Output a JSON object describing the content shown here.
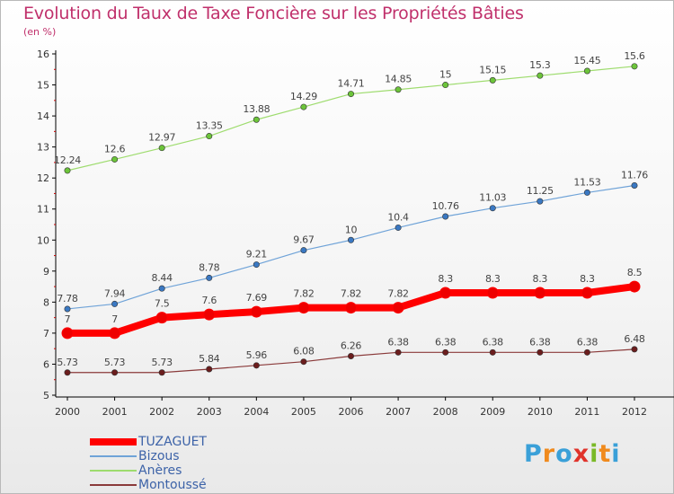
{
  "title": "Evolution du Taux de Taxe Foncière sur les Propriétés Bâties",
  "unit": "(en %)",
  "logo": {
    "letters": [
      "P",
      "r",
      "o",
      "x",
      "i",
      "t",
      "i"
    ],
    "colors": [
      "#3aa0d8",
      "#f08a1d",
      "#3aa0d8",
      "#e0332b",
      "#7ab927",
      "#f08a1d",
      "#3aa0d8"
    ]
  },
  "chart_data": {
    "type": "line",
    "x": [
      "2000",
      "2001",
      "2002",
      "2003",
      "2004",
      "2005",
      "2006",
      "2007",
      "2008",
      "2009",
      "2010",
      "2011",
      "2012"
    ],
    "y_ticks": [
      "5",
      "6",
      "7",
      "8",
      "9",
      "10",
      "11",
      "12",
      "13",
      "14",
      "15",
      "16"
    ],
    "ylim": [
      5,
      16
    ],
    "grid": false,
    "legend_position": "bottom-left",
    "series": [
      {
        "name": "TUZAGUET",
        "color": "#ff0000",
        "point_color": "#ee0000",
        "emphasis": true,
        "values": [
          7,
          7,
          7.5,
          7.6,
          7.69,
          7.82,
          7.82,
          7.82,
          8.3,
          8.3,
          8.3,
          8.3,
          8.5
        ],
        "labels": [
          "7",
          "7",
          "7.5",
          "7.6",
          "7.69",
          "7.82",
          "7.82",
          "7.82",
          "8.3",
          "8.3",
          "8.3",
          "8.3",
          "8.5"
        ]
      },
      {
        "name": "Bizous",
        "color": "#6fa3d8",
        "point_color": "#3a78c2",
        "emphasis": false,
        "values": [
          7.78,
          7.94,
          8.44,
          8.78,
          9.21,
          9.67,
          10,
          10.4,
          10.76,
          11.03,
          11.25,
          11.53,
          11.76
        ],
        "labels": [
          "7.78",
          "7.94",
          "8.44",
          "8.78",
          "9.21",
          "9.67",
          "10",
          "10.4",
          "10.76",
          "11.03",
          "11.25",
          "11.53",
          "11.76"
        ]
      },
      {
        "name": "Anères",
        "color": "#9edc6e",
        "point_color": "#6cc43a",
        "emphasis": false,
        "values": [
          12.24,
          12.6,
          12.97,
          13.35,
          13.88,
          14.29,
          14.71,
          14.85,
          15,
          15.15,
          15.3,
          15.45,
          15.6
        ],
        "labels": [
          "12.24",
          "12.6",
          "12.97",
          "13.35",
          "13.88",
          "14.29",
          "14.71",
          "14.85",
          "15",
          "15.15",
          "15.3",
          "15.45",
          "15.6"
        ]
      },
      {
        "name": "Montoussé",
        "color": "#8a3a3a",
        "point_color": "#6b1d1d",
        "emphasis": false,
        "values": [
          5.73,
          5.73,
          5.73,
          5.84,
          5.96,
          6.08,
          6.26,
          6.38,
          6.38,
          6.38,
          6.38,
          6.38,
          6.48
        ],
        "labels": [
          "5.73",
          "5.73",
          "5.73",
          "5.84",
          "5.96",
          "6.08",
          "6.26",
          "6.38",
          "6.38",
          "6.38",
          "6.38",
          "6.38",
          "6.48"
        ]
      }
    ]
  }
}
